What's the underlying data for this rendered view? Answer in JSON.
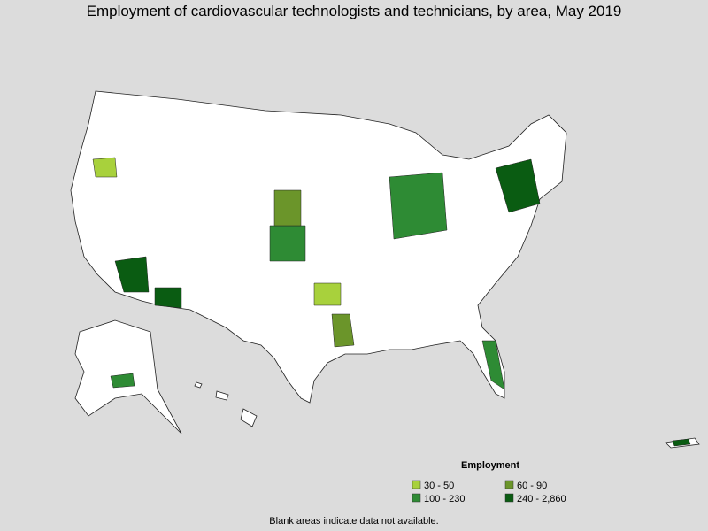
{
  "header": {
    "title": "Employment of cardiovascular technologists and technicians, by area, May 2019"
  },
  "legend": {
    "title": "Employment",
    "items": [
      {
        "label": "30 - 50",
        "color": "#a8d13c"
      },
      {
        "label": "60 - 90",
        "color": "#6b952a"
      },
      {
        "label": "100 - 230",
        "color": "#2e8b34"
      },
      {
        "label": "240 - 2,860",
        "color": "#0a5c12"
      }
    ]
  },
  "footnote": "Blank areas indicate data not available."
}
